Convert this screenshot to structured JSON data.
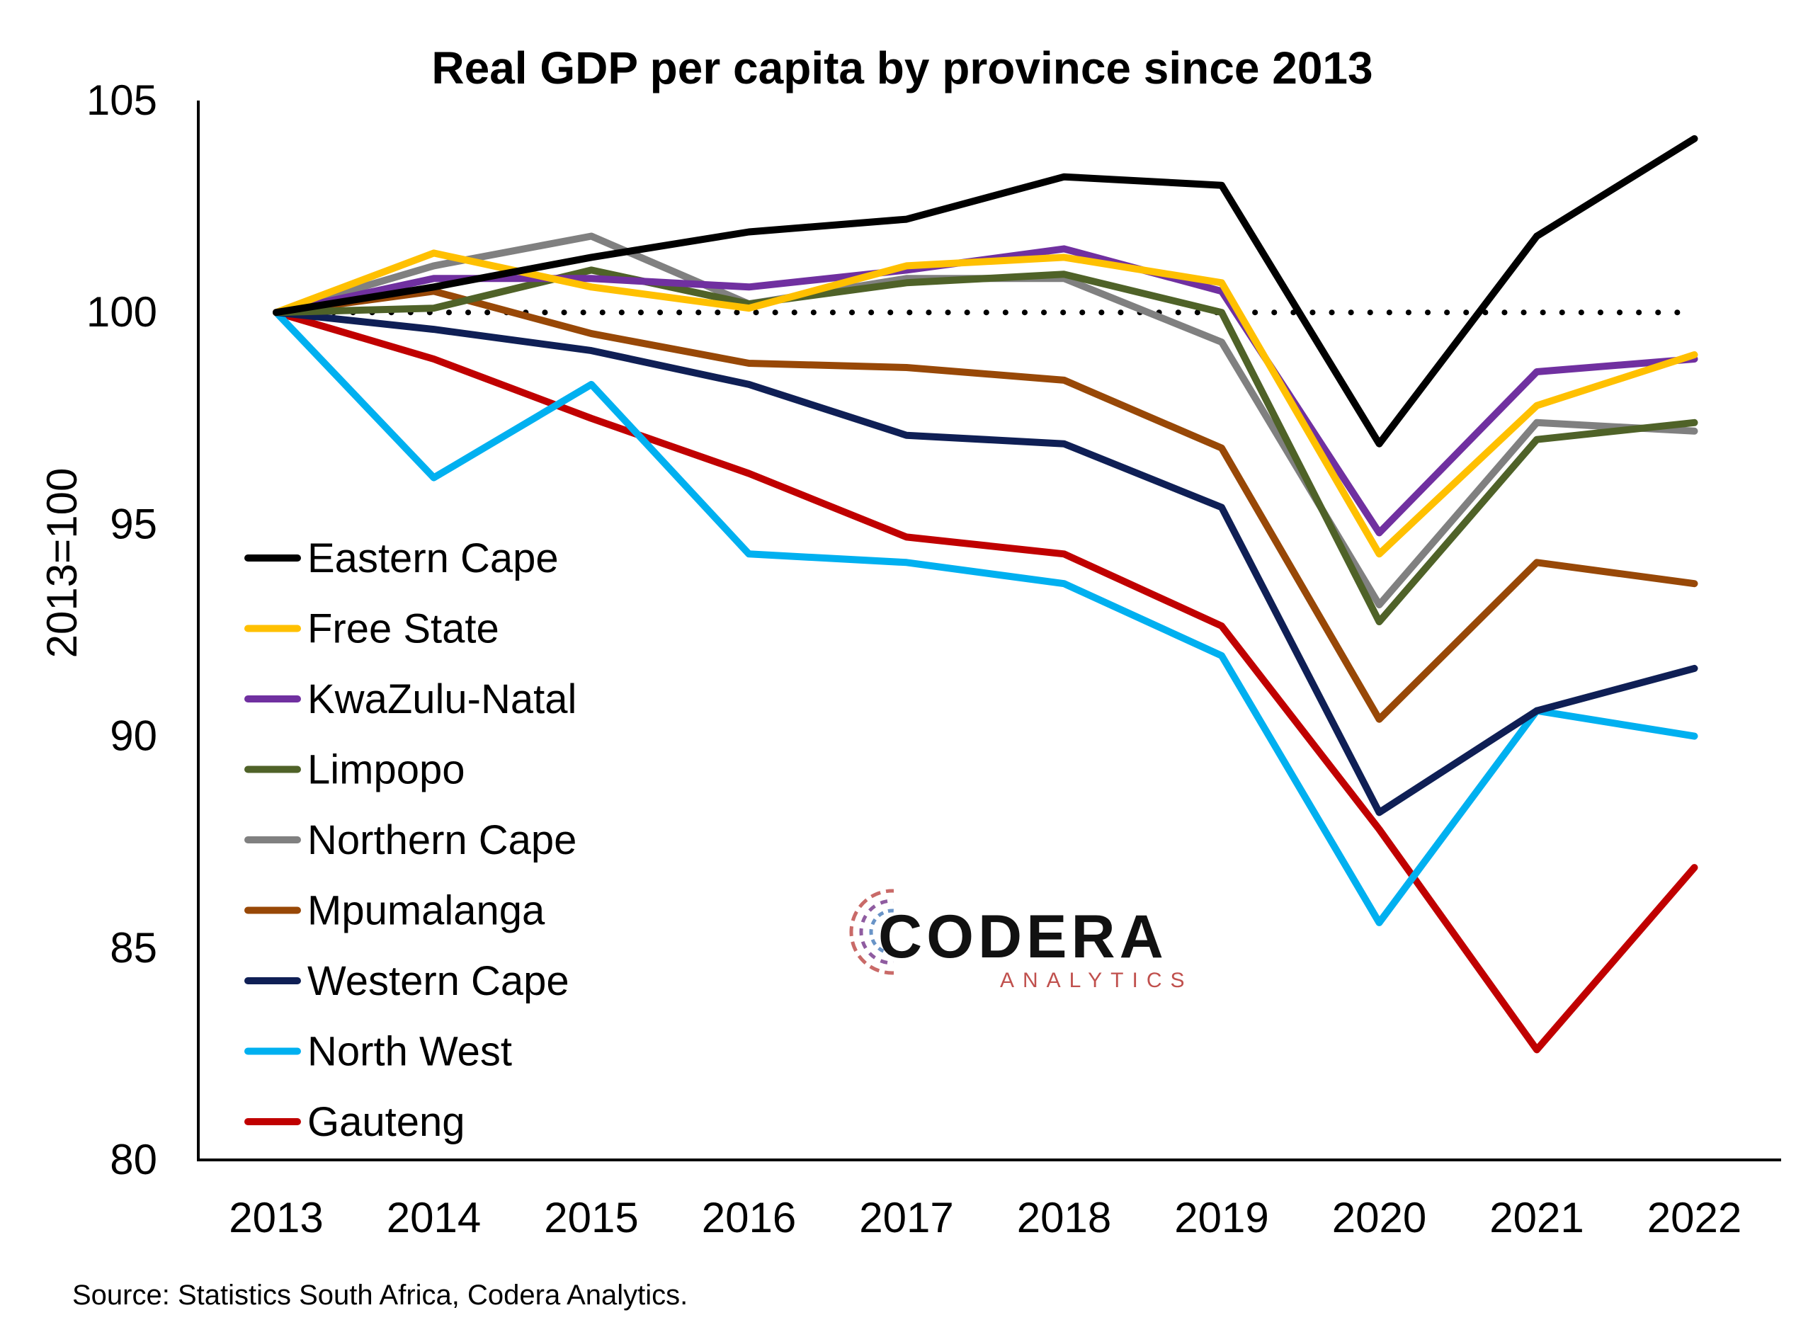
{
  "chart_data": {
    "type": "line",
    "title": "Real GDP per capita by province since 2013",
    "ylabel": "2013=100",
    "xlabel": "",
    "ylim": [
      80,
      105
    ],
    "yticks": [
      80,
      85,
      90,
      95,
      100,
      105
    ],
    "categories": [
      "2013",
      "2014",
      "2015",
      "2016",
      "2017",
      "2018",
      "2019",
      "2020",
      "2021",
      "2022"
    ],
    "reference_line": {
      "value": 100,
      "style": "dotted",
      "color": "#000000"
    },
    "legend_placement": "left",
    "grid": false,
    "series": [
      {
        "name": "Eastern Cape",
        "color": "#000000",
        "values": [
          100,
          100.6,
          101.3,
          101.9,
          102.2,
          103.2,
          103.0,
          96.9,
          101.8,
          104.1
        ]
      },
      {
        "name": "Free State",
        "color": "#FFC000",
        "values": [
          100,
          101.4,
          100.6,
          100.1,
          101.1,
          101.3,
          100.7,
          94.3,
          97.8,
          99.0
        ]
      },
      {
        "name": "KwaZulu-Natal",
        "color": "#7030A0",
        "values": [
          100,
          100.8,
          100.8,
          100.6,
          101.0,
          101.5,
          100.5,
          94.8,
          98.6,
          98.9
        ]
      },
      {
        "name": "Limpopo",
        "color": "#4F6228",
        "values": [
          100,
          100.1,
          101.0,
          100.2,
          100.7,
          100.9,
          100.0,
          92.7,
          97.0,
          97.4
        ]
      },
      {
        "name": "Northern Cape",
        "color": "#808080",
        "values": [
          100,
          101.1,
          101.8,
          100.2,
          100.8,
          100.8,
          99.3,
          93.1,
          97.4,
          97.2
        ]
      },
      {
        "name": "Mpumalanga",
        "color": "#984807",
        "values": [
          100,
          100.5,
          99.5,
          98.8,
          98.7,
          98.4,
          96.8,
          90.4,
          94.1,
          93.6
        ]
      },
      {
        "name": "Western Cape",
        "color": "#0F1F55",
        "values": [
          100,
          99.6,
          99.1,
          98.3,
          97.1,
          96.9,
          95.4,
          88.2,
          90.6,
          91.6
        ]
      },
      {
        "name": "North West",
        "color": "#00B0F0",
        "values": [
          100,
          96.1,
          98.3,
          94.3,
          94.1,
          93.6,
          91.9,
          85.6,
          90.6,
          90.0
        ]
      },
      {
        "name": "Gauteng",
        "color": "#C00000",
        "values": [
          100,
          98.9,
          97.5,
          96.2,
          94.7,
          94.3,
          92.6,
          87.8,
          82.6,
          86.9
        ]
      }
    ]
  },
  "logo": {
    "word": "CODERA",
    "sub": "ANALYTICS"
  },
  "source": "Source: Statistics South Africa, Codera Analytics."
}
